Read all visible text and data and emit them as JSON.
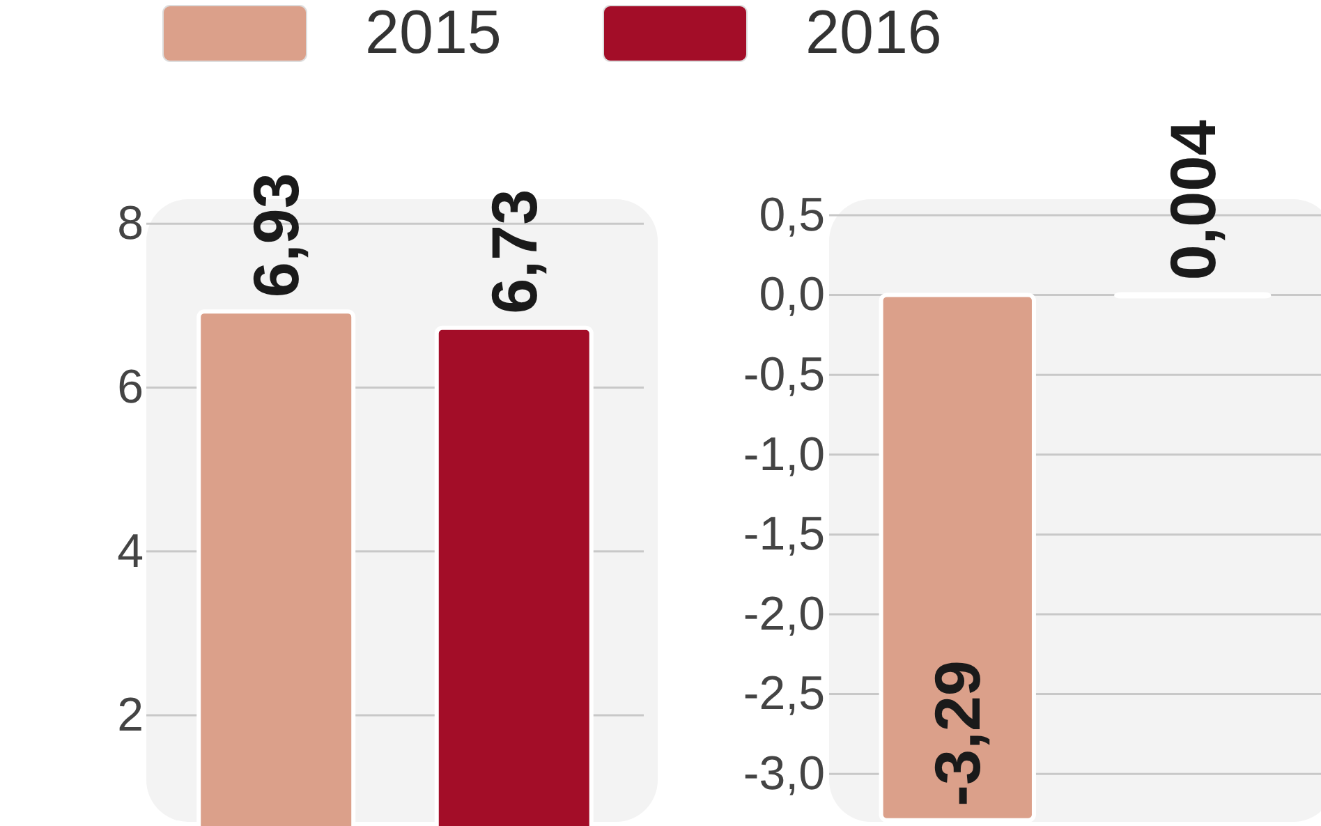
{
  "chart_data": [
    {
      "type": "bar",
      "categories": [
        null
      ],
      "series": [
        {
          "name": "2015",
          "color": "#dba08a",
          "values": [
            6.93
          ],
          "value_labels": [
            "6,93"
          ]
        },
        {
          "name": "2016",
          "color": "#a30d28",
          "values": [
            6.73
          ],
          "value_labels": [
            "6,73"
          ]
        }
      ],
      "ylim": [
        0.7,
        8.3
      ],
      "yticks": [
        2,
        4,
        6,
        8
      ],
      "grid": "y",
      "legend": "top"
    },
    {
      "type": "bar",
      "categories": [
        null
      ],
      "series": [
        {
          "color": "#dba08a",
          "values": [
            -3.29
          ],
          "value_labels": [
            "-3,29"
          ]
        },
        {
          "color": "#a30d28",
          "values": [
            0.004
          ],
          "value_labels": [
            "0,004"
          ]
        }
      ],
      "ylim": [
        -3.3,
        0.6
      ],
      "yticks": [
        {
          "value": 0.5,
          "label": "0,5"
        },
        {
          "value": 0,
          "label": "0,0"
        },
        {
          "value": -0.5,
          "label": "-0,5"
        },
        {
          "value": -1,
          "label": "-1,0"
        },
        {
          "value": -1.5,
          "label": "-1,5"
        },
        {
          "value": -2,
          "label": "-2,0"
        },
        {
          "value": -2.5,
          "label": "-2,5"
        },
        {
          "value": -3,
          "label": "-3,0"
        }
      ],
      "grid": "y"
    }
  ]
}
